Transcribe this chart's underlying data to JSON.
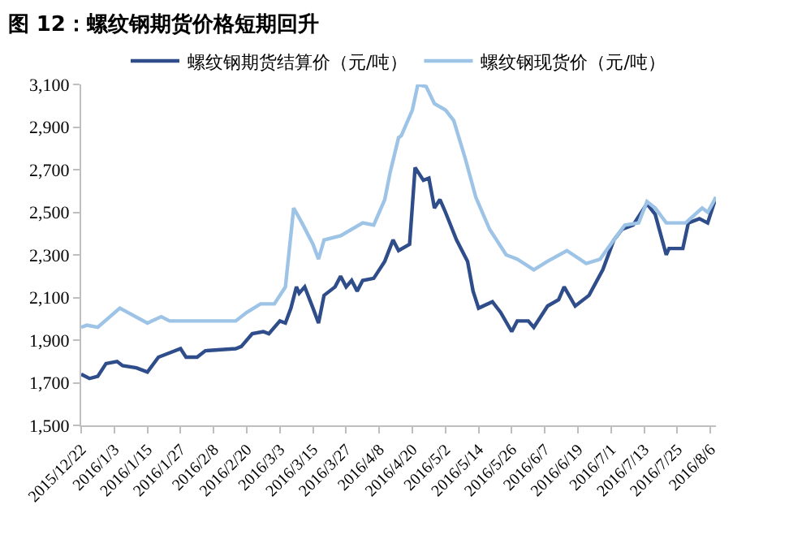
{
  "chart_data": {
    "type": "line",
    "title": "图 12：螺纹钢期货价格短期回升",
    "series": [
      {
        "name": "螺纹钢期货结算价（元/吨）",
        "color": "#2e4d8a",
        "x": [
          "2015-12-22",
          "2015-12-25",
          "2015-12-28",
          "2015-12-31",
          "2016-01-04",
          "2016-01-06",
          "2016-01-11",
          "2016-01-15",
          "2016-01-19",
          "2016-01-23",
          "2016-01-27",
          "2016-01-29",
          "2016-02-02",
          "2016-02-05",
          "2016-02-16",
          "2016-02-18",
          "2016-02-22",
          "2016-02-26",
          "2016-02-28",
          "2016-03-03",
          "2016-03-05",
          "2016-03-07",
          "2016-03-09",
          "2016-03-10",
          "2016-03-12",
          "2016-03-15",
          "2016-03-17",
          "2016-03-19",
          "2016-03-23",
          "2016-03-25",
          "2016-03-27",
          "2016-03-29",
          "2016-03-31",
          "2016-04-02",
          "2016-04-06",
          "2016-04-10",
          "2016-04-13",
          "2016-04-15",
          "2016-04-19",
          "2016-04-21",
          "2016-04-24",
          "2016-04-26",
          "2016-04-28",
          "2016-04-30",
          "2016-05-02",
          "2016-05-06",
          "2016-05-10",
          "2016-05-12",
          "2016-05-14",
          "2016-05-19",
          "2016-05-22",
          "2016-05-26",
          "2016-05-28",
          "2016-06-01",
          "2016-06-03",
          "2016-06-08",
          "2016-06-12",
          "2016-06-14",
          "2016-06-18",
          "2016-06-23",
          "2016-06-28",
          "2016-07-02",
          "2016-07-05",
          "2016-07-09",
          "2016-07-14",
          "2016-07-17",
          "2016-07-21",
          "2016-07-22",
          "2016-07-27",
          "2016-07-29",
          "2016-08-02",
          "2016-08-05",
          "2016-08-08"
        ],
        "values": [
          1740,
          1720,
          1730,
          1790,
          1800,
          1780,
          1770,
          1750,
          1820,
          1840,
          1860,
          1820,
          1820,
          1850,
          1860,
          1870,
          1930,
          1940,
          1930,
          1990,
          1980,
          2050,
          2150,
          2120,
          2150,
          2050,
          1980,
          2110,
          2150,
          2200,
          2150,
          2180,
          2130,
          2180,
          2190,
          2270,
          2370,
          2320,
          2350,
          2710,
          2650,
          2660,
          2520,
          2560,
          2500,
          2370,
          2270,
          2130,
          2050,
          2080,
          2030,
          1940,
          1990,
          1990,
          1960,
          2060,
          2090,
          2150,
          2060,
          2110,
          2230,
          2370,
          2420,
          2440,
          2540,
          2490,
          2300,
          2330,
          2330,
          2450,
          2470,
          2450,
          2570
        ]
      },
      {
        "name": "螺纹钢现货价（元/吨）",
        "color": "#9dc3e6",
        "x": [
          "2015-12-22",
          "2015-12-24",
          "2015-12-28",
          "2016-01-05",
          "2016-01-15",
          "2016-01-20",
          "2016-01-23",
          "2016-02-16",
          "2016-02-20",
          "2016-02-25",
          "2016-03-01",
          "2016-03-05",
          "2016-03-08",
          "2016-03-11",
          "2016-03-15",
          "2016-03-17",
          "2016-03-19",
          "2016-03-25",
          "2016-04-02",
          "2016-04-06",
          "2016-04-10",
          "2016-04-12",
          "2016-04-15",
          "2016-04-16",
          "2016-04-20",
          "2016-04-22",
          "2016-04-25",
          "2016-04-28",
          "2016-05-02",
          "2016-05-05",
          "2016-05-09",
          "2016-05-13",
          "2016-05-18",
          "2016-05-24",
          "2016-05-28",
          "2016-06-03",
          "2016-06-08",
          "2016-06-15",
          "2016-06-22",
          "2016-06-27",
          "2016-07-02",
          "2016-07-06",
          "2016-07-11",
          "2016-07-14",
          "2016-07-17",
          "2016-07-21",
          "2016-07-28",
          "2016-08-03",
          "2016-08-05",
          "2016-08-08"
        ],
        "values": [
          1960,
          1970,
          1960,
          2050,
          1980,
          2010,
          1990,
          1990,
          2030,
          2070,
          2070,
          2150,
          2520,
          2450,
          2350,
          2280,
          2370,
          2390,
          2450,
          2440,
          2560,
          2690,
          2850,
          2860,
          2980,
          3100,
          3090,
          3010,
          2980,
          2930,
          2760,
          2570,
          2420,
          2300,
          2280,
          2230,
          2270,
          2320,
          2260,
          2280,
          2370,
          2440,
          2450,
          2550,
          2520,
          2450,
          2450,
          2520,
          2500,
          2570
        ]
      }
    ],
    "xlim": [
      "2015-12-22",
      "2016-08-08"
    ],
    "xticks": [
      {
        "value": "2015-12-22",
        "label": "2015/12/22"
      },
      {
        "value": "2016-01-03",
        "label": "2016/1/3"
      },
      {
        "value": "2016-01-15",
        "label": "2016/1/15"
      },
      {
        "value": "2016-01-27",
        "label": "2016/1/27"
      },
      {
        "value": "2016-02-08",
        "label": "2016/2/8"
      },
      {
        "value": "2016-02-20",
        "label": "2016/2/20"
      },
      {
        "value": "2016-03-03",
        "label": "2016/3/3"
      },
      {
        "value": "2016-03-15",
        "label": "2016/3/15"
      },
      {
        "value": "2016-03-27",
        "label": "2016/3/27"
      },
      {
        "value": "2016-04-08",
        "label": "2016/4/8"
      },
      {
        "value": "2016-04-20",
        "label": "2016/4/20"
      },
      {
        "value": "2016-05-02",
        "label": "2016/5/2"
      },
      {
        "value": "2016-05-14",
        "label": "2016/5/14"
      },
      {
        "value": "2016-05-26",
        "label": "2016/5/26"
      },
      {
        "value": "2016-06-07",
        "label": "2016/6/7"
      },
      {
        "value": "2016-06-19",
        "label": "2016/6/19"
      },
      {
        "value": "2016-07-01",
        "label": "2016/7/1"
      },
      {
        "value": "2016-07-13",
        "label": "2016/7/13"
      },
      {
        "value": "2016-07-25",
        "label": "2016/7/25"
      },
      {
        "value": "2016-08-06",
        "label": "2016/8/6"
      }
    ],
    "ylim": [
      1500,
      3100
    ],
    "yticks": [
      {
        "value": 1500,
        "label": "1,500"
      },
      {
        "value": 1700,
        "label": "1,700"
      },
      {
        "value": 1900,
        "label": "1,900"
      },
      {
        "value": 2100,
        "label": "2,100"
      },
      {
        "value": 2300,
        "label": "2,300"
      },
      {
        "value": 2500,
        "label": "2,500"
      },
      {
        "value": 2700,
        "label": "2,700"
      },
      {
        "value": 2900,
        "label": "2,900"
      },
      {
        "value": 3100,
        "label": "3,100"
      }
    ],
    "legend": "top",
    "marker": "none",
    "line_style": "solid"
  }
}
